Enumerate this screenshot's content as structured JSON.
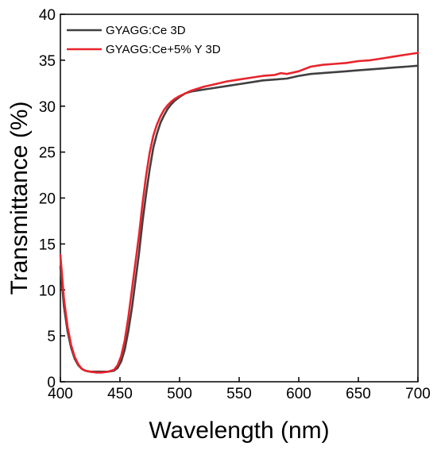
{
  "chart_data": {
    "type": "line",
    "xlabel": "Wavelength (nm)",
    "ylabel": "Transmittance (%)",
    "xlim": [
      400,
      700
    ],
    "ylim": [
      0,
      40
    ],
    "xticks": [
      400,
      450,
      500,
      550,
      600,
      650,
      700
    ],
    "yticks": [
      0,
      5,
      10,
      15,
      20,
      25,
      30,
      35,
      40
    ],
    "grid": false,
    "legend_position": "top-left",
    "series": [
      {
        "name": "GYAGG:Ce 3D",
        "color": "#404040",
        "x": [
          400,
          403,
          406,
          409,
          412,
          415,
          418,
          421,
          425,
          430,
          435,
          440,
          445,
          448,
          451,
          454,
          457,
          460,
          463,
          466,
          469,
          472,
          475,
          478,
          481,
          484,
          487,
          490,
          493,
          496,
          500,
          505,
          510,
          520,
          530,
          540,
          550,
          560,
          570,
          580,
          590,
          600,
          610,
          620,
          630,
          640,
          650,
          660,
          670,
          680,
          690,
          700
        ],
        "y": [
          12.5,
          8.2,
          5.5,
          3.7,
          2.5,
          1.8,
          1.4,
          1.2,
          1.1,
          1.1,
          1.1,
          1.1,
          1.2,
          1.5,
          2.2,
          3.5,
          5.5,
          8.0,
          11.0,
          14.0,
          17.5,
          20.5,
          23.2,
          25.5,
          27.0,
          28.2,
          29.0,
          29.7,
          30.2,
          30.6,
          31.0,
          31.4,
          31.6,
          31.8,
          32.0,
          32.2,
          32.4,
          32.6,
          32.8,
          32.9,
          33.0,
          33.3,
          33.5,
          33.6,
          33.7,
          33.8,
          33.9,
          34.0,
          34.1,
          34.2,
          34.3,
          34.4
        ]
      },
      {
        "name": "GYAGG:Ce+5% Y 3D",
        "color": "#e8242c",
        "x": [
          400,
          403,
          406,
          409,
          412,
          415,
          418,
          421,
          425,
          430,
          435,
          440,
          445,
          448,
          451,
          454,
          457,
          460,
          463,
          466,
          469,
          472,
          475,
          478,
          481,
          484,
          487,
          490,
          493,
          496,
          500,
          505,
          510,
          520,
          530,
          540,
          550,
          560,
          570,
          580,
          585,
          590,
          600,
          610,
          620,
          630,
          640,
          650,
          660,
          670,
          680,
          690,
          700
        ],
        "y": [
          13.8,
          9.0,
          6.0,
          4.0,
          2.7,
          1.9,
          1.4,
          1.2,
          1.1,
          1.0,
          1.0,
          1.1,
          1.3,
          1.8,
          2.8,
          4.5,
          7.0,
          10.0,
          13.0,
          16.0,
          19.5,
          22.5,
          25.0,
          26.8,
          28.0,
          28.9,
          29.6,
          30.1,
          30.5,
          30.8,
          31.1,
          31.4,
          31.7,
          32.1,
          32.4,
          32.7,
          32.9,
          33.1,
          33.3,
          33.4,
          33.6,
          33.5,
          33.8,
          34.3,
          34.5,
          34.6,
          34.7,
          34.9,
          35.0,
          35.2,
          35.4,
          35.6,
          35.8
        ]
      }
    ]
  }
}
